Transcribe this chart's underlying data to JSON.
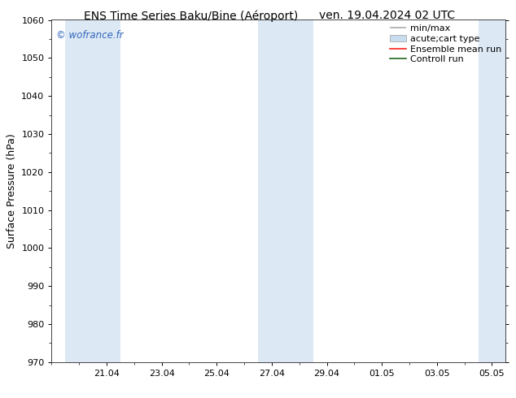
{
  "title_left": "ENS Time Series Baku/Bine (Aéroport)",
  "title_right": "ven. 19.04.2024 02 UTC",
  "ylabel": "Surface Pressure (hPa)",
  "ylim": [
    970,
    1060
  ],
  "yticks": [
    970,
    980,
    990,
    1000,
    1010,
    1020,
    1030,
    1040,
    1050,
    1060
  ],
  "xlim": [
    0,
    16.5
  ],
  "xtick_labels": [
    "21.04",
    "23.04",
    "25.04",
    "27.04",
    "29.04",
    "01.05",
    "03.05",
    "05.05"
  ],
  "xtick_positions": [
    2.0,
    4.0,
    6.0,
    8.0,
    10.0,
    12.0,
    14.0,
    16.0
  ],
  "shaded_bands": [
    {
      "x_start": 0.5,
      "x_end": 2.5
    },
    {
      "x_start": 7.5,
      "x_end": 9.5
    },
    {
      "x_start": 15.5,
      "x_end": 16.5
    }
  ],
  "band_color": "#dce9f5",
  "background_color": "#ffffff",
  "watermark_text": "© wofrance.fr",
  "watermark_color": "#3366bb",
  "title_fontsize": 10,
  "tick_fontsize": 8,
  "ylabel_fontsize": 9,
  "legend_fontsize": 8,
  "minmax_color": "#aaaaaa",
  "cart_color": "#c8ddf0",
  "ensemble_color": "#ff2222",
  "control_color": "#226622"
}
